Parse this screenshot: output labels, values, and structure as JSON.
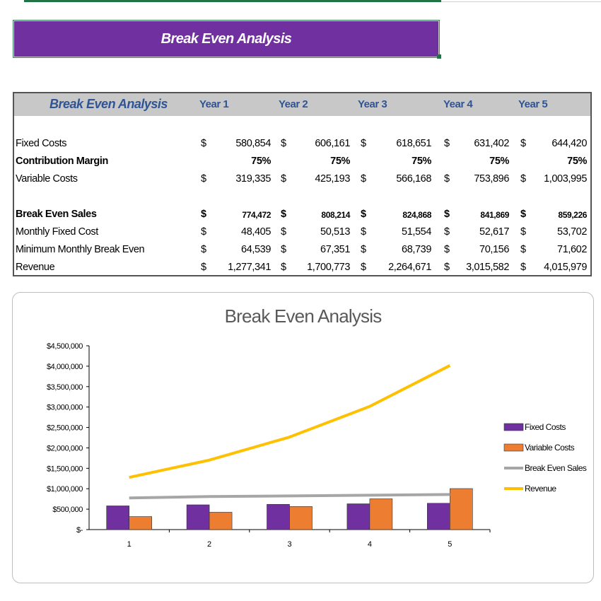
{
  "banner": {
    "title": "Break Even Analysis"
  },
  "table": {
    "title": "Break Even Analysis",
    "years": [
      "Year 1",
      "Year 2",
      "Year 3",
      "Year 4",
      "Year 5"
    ],
    "currency": "$",
    "rows": [
      {
        "label": "Fixed Costs",
        "bold": false,
        "dollar": true,
        "values": [
          "580,854",
          "606,161",
          "618,651",
          "631,402",
          "644,420"
        ]
      },
      {
        "label": "Contribution Margin",
        "bold": true,
        "dollar": false,
        "values": [
          "75%",
          "75%",
          "75%",
          "75%",
          "75%"
        ]
      },
      {
        "label": "Variable Costs",
        "bold": false,
        "dollar": true,
        "values": [
          "319,335",
          "425,193",
          "566,168",
          "753,896",
          "1,003,995"
        ]
      },
      {
        "label": "Break Even Sales",
        "bold": true,
        "dollar": true,
        "values": [
          "774,472",
          "808,214",
          "824,868",
          "841,869",
          "859,226"
        ]
      },
      {
        "label": "Monthly Fixed Cost",
        "bold": false,
        "dollar": true,
        "values": [
          "48,405",
          "50,513",
          "51,554",
          "52,617",
          "53,702"
        ]
      },
      {
        "label": "Minimum Monthly Break Even",
        "bold": false,
        "dollar": true,
        "values": [
          "64,539",
          "67,351",
          "68,739",
          "70,156",
          "71,602"
        ]
      },
      {
        "label": "Revenue",
        "bold": false,
        "dollar": true,
        "values": [
          "1,277,341",
          "1,700,773",
          "2,264,671",
          "3,015,582",
          "4,015,979"
        ]
      }
    ]
  },
  "chart_data": {
    "type": "bar",
    "title": "Break Even Analysis",
    "categories": [
      "1",
      "2",
      "3",
      "4",
      "5"
    ],
    "ylim": [
      0,
      4500000
    ],
    "yticks": [
      "$-",
      "$500,000",
      "$1,000,000",
      "$1,500,000",
      "$2,000,000",
      "$2,500,000",
      "$3,000,000",
      "$3,500,000",
      "$4,000,000",
      "$4,500,000"
    ],
    "legend_position": "right",
    "series": [
      {
        "name": "Fixed Costs",
        "kind": "bar",
        "color": "#7030a0",
        "values": [
          580854,
          606161,
          618651,
          631402,
          644420
        ]
      },
      {
        "name": "Variable Costs",
        "kind": "bar",
        "color": "#ed7d31",
        "values": [
          319335,
          425193,
          566168,
          753896,
          1003995
        ]
      },
      {
        "name": "Break Even Sales",
        "kind": "line",
        "color": "#a6a6a6",
        "values": [
          774472,
          808214,
          824868,
          841869,
          859226
        ]
      },
      {
        "name": "Revenue",
        "kind": "line",
        "color": "#ffc000",
        "values": [
          1277341,
          1700773,
          2264671,
          3015582,
          4015979
        ]
      }
    ]
  }
}
